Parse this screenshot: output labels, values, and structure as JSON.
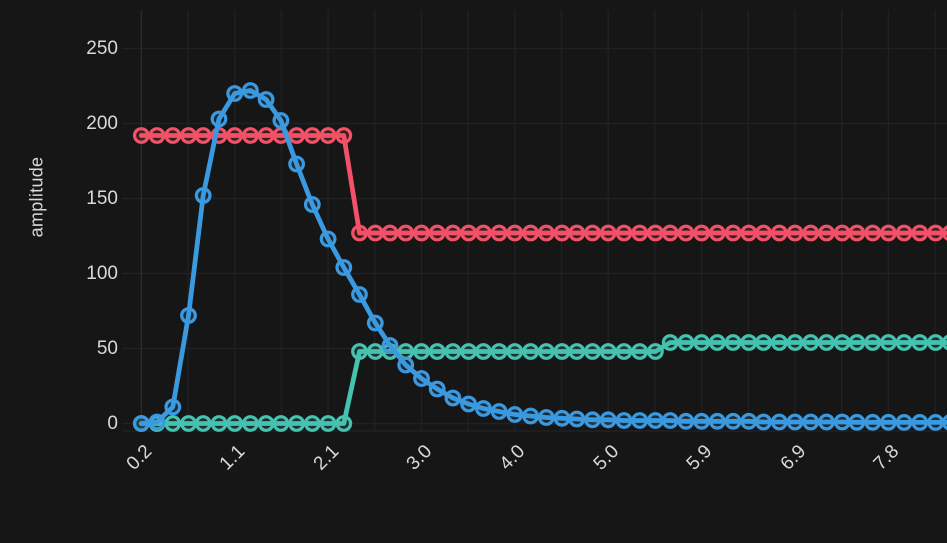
{
  "panel": {
    "background_color": "#161616",
    "grid_color": "#202124",
    "axis_line_color": "#2a2a2e",
    "text_color": "#d8d9da"
  },
  "chart_data": {
    "type": "line",
    "title": "",
    "xlabel": "",
    "ylabel": "amplitude",
    "grid": true,
    "legend": "none",
    "marker_style": "open-circle",
    "xlim": [
      0.2,
      8.45
    ],
    "ylim": [
      0,
      275
    ],
    "y_ticks": [
      0,
      50,
      100,
      150,
      200,
      250
    ],
    "x_ticks": [
      {
        "label": "0.2",
        "value": 0.2
      },
      {
        "label": "1.1",
        "value": 1.15
      },
      {
        "label": "2.1",
        "value": 2.1
      },
      {
        "label": "3.0",
        "value": 3.05
      },
      {
        "label": "4.0",
        "value": 4.0
      },
      {
        "label": "5.0",
        "value": 4.95
      },
      {
        "label": "5.9",
        "value": 5.9
      },
      {
        "label": "6.9",
        "value": 6.85
      },
      {
        "label": "7.8",
        "value": 7.8
      }
    ],
    "x_minor_grid_step": 0.475,
    "x": [
      0.2,
      0.36,
      0.52,
      0.68,
      0.83,
      0.99,
      1.15,
      1.31,
      1.47,
      1.62,
      1.78,
      1.94,
      2.1,
      2.26,
      2.42,
      2.58,
      2.73,
      2.89,
      3.05,
      3.21,
      3.37,
      3.53,
      3.68,
      3.84,
      4.0,
      4.16,
      4.32,
      4.48,
      4.63,
      4.79,
      4.95,
      5.11,
      5.27,
      5.43,
      5.58,
      5.74,
      5.9,
      6.06,
      6.22,
      6.38,
      6.53,
      6.69,
      6.85,
      7.01,
      7.17,
      7.33,
      7.48,
      7.64,
      7.8,
      7.96,
      8.12,
      8.28,
      8.43
    ],
    "series": [
      {
        "id": "red",
        "color": "#f25168",
        "values": [
          192,
          192,
          192,
          192,
          192,
          192,
          192,
          192,
          192,
          192,
          192,
          192,
          192,
          192,
          127,
          127,
          127,
          127,
          127,
          127,
          127,
          127,
          127,
          127,
          127,
          127,
          127,
          127,
          127,
          127,
          127,
          127,
          127,
          127,
          127,
          127,
          127,
          127,
          127,
          127,
          127,
          127,
          127,
          127,
          127,
          127,
          127,
          127,
          127,
          127,
          127,
          127,
          127
        ]
      },
      {
        "id": "teal",
        "color": "#45c2b0",
        "values": [
          0,
          0,
          0,
          0,
          0,
          0,
          0,
          0,
          0,
          0,
          0,
          0,
          0,
          0,
          48,
          48,
          48,
          48,
          48,
          48,
          48,
          48,
          48,
          48,
          48,
          48,
          48,
          48,
          48,
          48,
          48,
          48,
          48,
          48,
          54,
          54,
          54,
          54,
          54,
          54,
          54,
          54,
          54,
          54,
          54,
          54,
          54,
          54,
          54,
          54,
          54,
          54,
          54
        ]
      },
      {
        "id": "blue",
        "color": "#3b99e0",
        "values": [
          0,
          1,
          11,
          72,
          152,
          203,
          220,
          222,
          216,
          202,
          173,
          146,
          123,
          104,
          86,
          67,
          52,
          39,
          30,
          23,
          17,
          13,
          10,
          8,
          6,
          5,
          4,
          3.5,
          3,
          2.5,
          2.5,
          2,
          2,
          2,
          2,
          1.5,
          1.5,
          1.5,
          1.5,
          1.5,
          1,
          1,
          1,
          1,
          1,
          1,
          0.8,
          0.8,
          0.8,
          0.7,
          0.7,
          0.7,
          0.7
        ]
      }
    ]
  }
}
